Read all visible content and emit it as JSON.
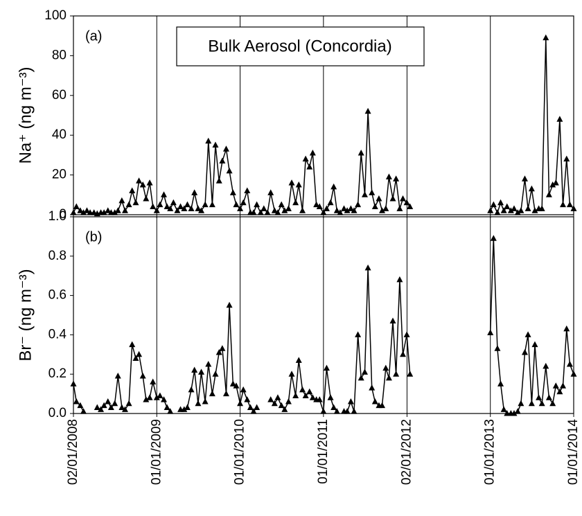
{
  "chart_data": [
    {
      "type": "line",
      "title": "Bulk Aerosol (Concordia)",
      "panel_label": "(a)",
      "ylabel": "Na⁺ (ng m⁻³)",
      "color": "#000000",
      "grid_x": true,
      "x": [
        "2008-01-02",
        "2008-01-15",
        "2008-02-01",
        "2008-02-15",
        "2008-03-01",
        "2008-03-15",
        "2008-04-01",
        "2008-04-15",
        "2008-05-01",
        "2008-05-15",
        "2008-06-01",
        "2008-06-15",
        "2008-07-01",
        "2008-07-15",
        "2008-08-01",
        "2008-08-15",
        "2008-09-01",
        "2008-09-15",
        "2008-10-01",
        "2008-10-15",
        "2008-11-01",
        "2008-11-15",
        "2008-12-01",
        "2008-12-15",
        "2009-01-01",
        "2009-01-15",
        "2009-02-01",
        "2009-02-15",
        "2009-03-01",
        "2009-03-15",
        "2009-04-01",
        "2009-04-15",
        "2009-05-01",
        "2009-05-15",
        "2009-06-01",
        "2009-06-15",
        "2009-07-01",
        "2009-07-15",
        "2009-08-01",
        "2009-08-15",
        "2009-09-01",
        "2009-09-15",
        "2009-10-01",
        "2009-10-15",
        "2009-11-01",
        "2009-11-15",
        "2009-12-01",
        "2009-12-15",
        "2010-01-01",
        "2010-01-15",
        "2010-02-01",
        "2010-02-15",
        "2010-03-01",
        "2010-03-15",
        "2010-04-01",
        "2010-04-15",
        "2010-05-01",
        "2010-05-15",
        "2010-06-01",
        "2010-06-15",
        "2010-07-01",
        "2010-07-15",
        "2010-08-01",
        "2010-08-15",
        "2010-09-01",
        "2010-09-15",
        "2010-10-01",
        "2010-10-15",
        "2010-11-01",
        "2010-11-15",
        "2010-12-01",
        "2010-12-15",
        "2011-01-01",
        "2011-01-15",
        "2011-02-01",
        "2011-02-15",
        "2011-03-01",
        "2011-03-15",
        "2011-04-01",
        "2011-04-15",
        "2011-05-01",
        "2011-05-15",
        "2011-06-01",
        "2011-06-15",
        "2011-07-01",
        "2011-07-15",
        "2011-08-01",
        "2011-08-15",
        "2011-09-01",
        "2011-09-15",
        "2011-10-01",
        "2011-10-15",
        "2011-11-01",
        "2011-11-15",
        "2011-12-01",
        "2011-12-15",
        "2012-01-01",
        "2012-01-15",
        "2012-07-01",
        "2013-01-01",
        "2013-01-15",
        "2013-02-01",
        "2013-02-15",
        "2013-03-01",
        "2013-03-15",
        "2013-04-01",
        "2013-04-15",
        "2013-05-01",
        "2013-05-15",
        "2013-06-01",
        "2013-06-15",
        "2013-07-01",
        "2013-07-15",
        "2013-08-01",
        "2013-08-15",
        "2013-09-01",
        "2013-09-15",
        "2013-10-01",
        "2013-10-15",
        "2013-11-01",
        "2013-11-15",
        "2013-12-01",
        "2013-12-15",
        "2014-01-01"
      ],
      "values": [
        1,
        4,
        2,
        1,
        2,
        1,
        1,
        0.5,
        1,
        1,
        2,
        1,
        1,
        2,
        7,
        2,
        5,
        12,
        6,
        17,
        15,
        8,
        16,
        4,
        2,
        5,
        10,
        4,
        3,
        6,
        2,
        4,
        3,
        5,
        3,
        11,
        3,
        2,
        5,
        37,
        5,
        35,
        17,
        27,
        33,
        22,
        11,
        5,
        3,
        6,
        12,
        1,
        1,
        5,
        1,
        3,
        1,
        11,
        2,
        1,
        5,
        2,
        3,
        16,
        6,
        15,
        2,
        28,
        24,
        31,
        5,
        4,
        1,
        3,
        6,
        14,
        2,
        1,
        3,
        2,
        3,
        2,
        5,
        31,
        10,
        52,
        11,
        4,
        8,
        2,
        3,
        19,
        8,
        18,
        3,
        8,
        6,
        4,
        null,
        2,
        5,
        1,
        6,
        2,
        4,
        2,
        3,
        1,
        2,
        18,
        3,
        13,
        2,
        3,
        3,
        89,
        10,
        15,
        16,
        48,
        5,
        28,
        5,
        3
      ],
      "xlim": [
        "2008-01-02",
        "2014-01-01"
      ],
      "xticks": [
        "2008-01-02",
        "2009-01-01",
        "2010-01-01",
        "2011-01-01",
        "2012-01-02",
        "2013-01-01",
        "2014-01-01"
      ],
      "ylim": [
        0,
        100
      ],
      "yticks": [
        0,
        20,
        40,
        60,
        80,
        100
      ]
    },
    {
      "type": "line",
      "panel_label": "(b)",
      "ylabel": "Br⁻ (ng m⁻³)",
      "color": "#000000",
      "grid_x": true,
      "x": [
        "2008-01-02",
        "2008-01-15",
        "2008-02-01",
        "2008-02-15",
        "2008-03-01",
        "2008-03-15",
        "2008-04-01",
        "2008-04-15",
        "2008-05-01",
        "2008-05-15",
        "2008-06-01",
        "2008-06-15",
        "2008-07-01",
        "2008-07-15",
        "2008-08-01",
        "2008-08-15",
        "2008-09-01",
        "2008-09-15",
        "2008-10-01",
        "2008-10-15",
        "2008-11-01",
        "2008-11-15",
        "2008-12-01",
        "2008-12-15",
        "2009-01-01",
        "2009-01-15",
        "2009-02-01",
        "2009-02-15",
        "2009-03-01",
        "2009-03-15",
        "2009-04-01",
        "2009-04-15",
        "2009-05-01",
        "2009-05-15",
        "2009-06-01",
        "2009-06-15",
        "2009-07-01",
        "2009-07-15",
        "2009-08-01",
        "2009-08-15",
        "2009-09-01",
        "2009-09-15",
        "2009-10-01",
        "2009-10-15",
        "2009-11-01",
        "2009-11-15",
        "2009-12-01",
        "2009-12-15",
        "2010-01-01",
        "2010-01-15",
        "2010-02-01",
        "2010-02-15",
        "2010-03-01",
        "2010-03-15",
        "2010-04-01",
        "2010-04-15",
        "2010-05-01",
        "2010-05-15",
        "2010-06-01",
        "2010-06-15",
        "2010-07-01",
        "2010-07-15",
        "2010-08-01",
        "2010-08-15",
        "2010-09-01",
        "2010-09-15",
        "2010-10-01",
        "2010-10-15",
        "2010-11-01",
        "2010-11-15",
        "2010-12-01",
        "2010-12-15",
        "2011-01-01",
        "2011-01-15",
        "2011-02-01",
        "2011-02-15",
        "2011-03-01",
        "2011-03-15",
        "2011-04-01",
        "2011-04-15",
        "2011-05-01",
        "2011-05-15",
        "2011-06-01",
        "2011-06-15",
        "2011-07-01",
        "2011-07-15",
        "2011-08-01",
        "2011-08-15",
        "2011-09-01",
        "2011-09-15",
        "2011-10-01",
        "2011-10-15",
        "2011-11-01",
        "2011-11-15",
        "2011-12-01",
        "2011-12-15",
        "2012-01-01",
        "2012-01-15",
        "2012-07-01",
        "2013-01-01",
        "2013-01-15",
        "2013-02-01",
        "2013-02-15",
        "2013-03-01",
        "2013-03-15",
        "2013-04-01",
        "2013-04-15",
        "2013-05-01",
        "2013-05-15",
        "2013-06-01",
        "2013-06-15",
        "2013-07-01",
        "2013-07-15",
        "2013-08-01",
        "2013-08-15",
        "2013-09-01",
        "2013-09-15",
        "2013-10-01",
        "2013-10-15",
        "2013-11-01",
        "2013-11-15",
        "2013-12-01",
        "2013-12-15",
        "2014-01-01"
      ],
      "values": [
        0.15,
        0.06,
        0.04,
        0.01,
        null,
        null,
        null,
        0.03,
        0.02,
        0.04,
        0.06,
        0.03,
        0.05,
        0.19,
        0.03,
        0.02,
        0.05,
        0.35,
        0.28,
        0.3,
        0.19,
        0.07,
        0.08,
        0.16,
        0.08,
        0.09,
        0.07,
        0.03,
        0.01,
        null,
        null,
        0.02,
        0.02,
        0.03,
        0.12,
        0.22,
        0.05,
        0.21,
        0.06,
        0.25,
        0.1,
        0.2,
        0.31,
        0.33,
        0.1,
        0.55,
        0.15,
        0.14,
        0.05,
        0.12,
        0.07,
        0.03,
        0.01,
        0.03,
        null,
        null,
        null,
        0.07,
        0.05,
        0.08,
        0.04,
        0.02,
        0.06,
        0.2,
        0.09,
        0.27,
        0.12,
        0.09,
        0.11,
        0.08,
        0.07,
        0.07,
        0.01,
        0.23,
        0.08,
        0.03,
        0.01,
        null,
        0.01,
        0.01,
        0.06,
        0.01,
        0.4,
        0.18,
        0.21,
        0.74,
        0.13,
        0.06,
        0.04,
        0.04,
        0.23,
        0.18,
        0.47,
        0.2,
        0.68,
        0.3,
        0.4,
        0.2,
        null,
        0.41,
        0.89,
        0.33,
        0.15,
        0.02,
        0,
        0,
        0,
        0.01,
        0.05,
        0.31,
        0.4,
        0.05,
        0.35,
        0.08,
        0.05,
        0.24,
        0.08,
        0.05,
        0.14,
        0.11,
        0.14,
        0.43,
        0.25,
        0.2
      ],
      "xlim": [
        "2008-01-02",
        "2014-01-01"
      ],
      "xticks": [
        {
          "value": "2008-01-02",
          "label": "02/01/2008"
        },
        {
          "value": "2009-01-01",
          "label": "01/01/2009"
        },
        {
          "value": "2010-01-01",
          "label": "01/01/2010"
        },
        {
          "value": "2011-01-01",
          "label": "01/01/2011"
        },
        {
          "value": "2012-01-02",
          "label": "02/01/2012"
        },
        {
          "value": "2013-01-01",
          "label": "01/01/2013"
        },
        {
          "value": "2014-01-01",
          "label": "01/01/2014"
        }
      ],
      "ylim": [
        0,
        1
      ],
      "yticks": [
        {
          "value": 0,
          "label": "0.0"
        },
        0.2,
        0.4,
        0.6,
        0.8,
        {
          "value": 1,
          "label": "1.0"
        }
      ]
    }
  ]
}
